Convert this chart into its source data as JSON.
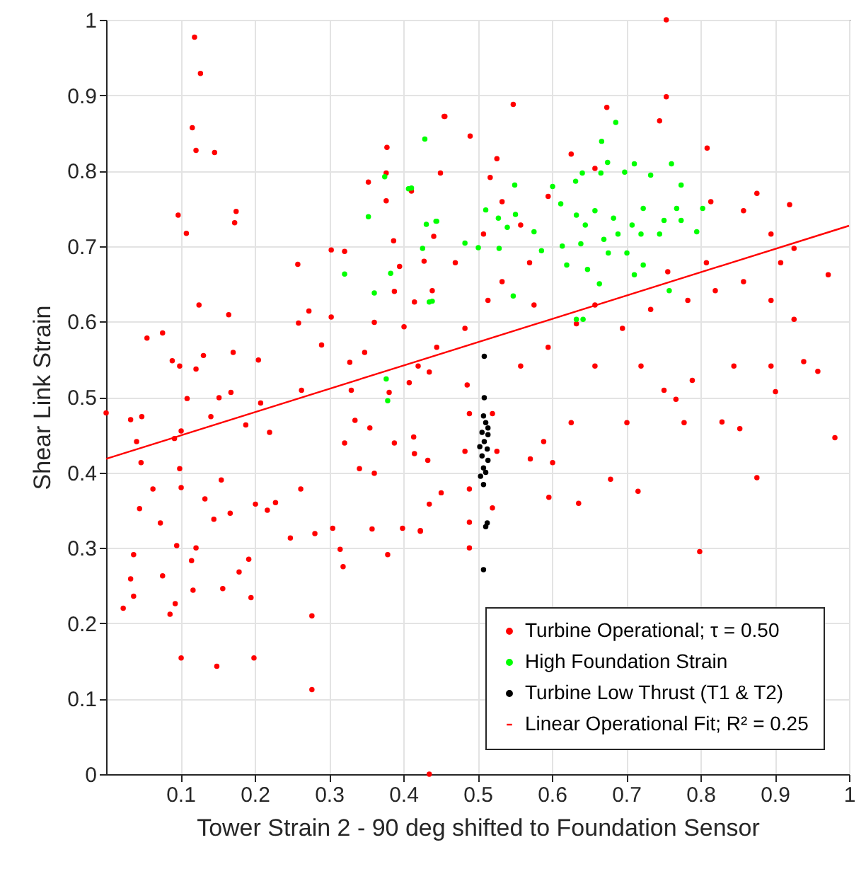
{
  "chart_data": {
    "type": "scatter",
    "xlabel": "Tower Strain 2 - 90 deg shifted to Foundation Sensor",
    "ylabel": "Shear Link Strain",
    "xlim": [
      0,
      1
    ],
    "ylim": [
      0,
      1
    ],
    "xticks": [
      0.1,
      0.2,
      0.3,
      0.4,
      0.5,
      0.6,
      0.7,
      0.8,
      0.9,
      1
    ],
    "yticks": [
      0,
      0.1,
      0.2,
      0.3,
      0.4,
      0.5,
      0.6,
      0.7,
      0.8,
      0.9,
      1
    ],
    "grid": true,
    "legend": "bottom right",
    "marker": "circle",
    "series": [
      {
        "name": "Turbine Operational; τ = 0.50",
        "color": "#ff0000",
        "x": [
          0.119,
          0.127,
          0.116,
          0.121,
          0.146,
          0.097,
          0.108,
          0.175,
          0.173,
          0.125,
          0.165,
          0.055,
          0.076,
          0,
          0.033,
          0.048,
          0.041,
          0.047,
          0.045,
          0.037,
          0.033,
          0.037,
          0.023,
          0.063,
          0.073,
          0.076,
          0.086,
          0.093,
          0.101,
          0.149,
          0.199,
          0.095,
          0.115,
          0.121,
          0.117,
          0.101,
          0.099,
          0.092,
          0.101,
          0.109,
          0.089,
          0.099,
          0.131,
          0.121,
          0.141,
          0.152,
          0.155,
          0.133,
          0.145,
          0.167,
          0.157,
          0.179,
          0.192,
          0.195,
          0.171,
          0.168,
          0.188,
          0.208,
          0.205,
          0.201,
          0.217,
          0.228,
          0.22,
          0.248,
          0.258,
          0.259,
          0.263,
          0.262,
          0.273,
          0.277,
          0.277,
          0.281,
          0.29,
          0.303,
          0.303,
          0.305,
          0.315,
          0.319,
          0.321,
          0.33,
          0.335,
          0.341,
          0.361,
          0.353,
          0.378,
          0.377,
          0.377,
          0.379,
          0.358,
          0.387,
          0.395,
          0.399,
          0.411,
          0.423,
          0.45,
          0.455,
          0.328,
          0.348,
          0.361,
          0.388,
          0.401,
          0.415,
          0.428,
          0.441,
          0.381,
          0.408,
          0.435,
          0.355,
          0.388,
          0.415,
          0.435,
          0.321,
          0.435,
          0.548,
          0.456,
          0.49,
          0.674,
          0.754,
          0.754,
          0.745,
          0.809,
          0.876,
          0.92,
          0.972,
          0.981,
          0.958,
          0.901,
          0.876,
          0.853,
          0.829,
          0.799,
          0.778,
          0.767,
          0.716,
          0.679,
          0.636,
          0.596,
          0.601,
          0.571,
          0.589,
          0.626,
          0.658,
          0.701,
          0.72,
          0.751,
          0.789,
          0.845,
          0.895,
          0.939,
          0.926,
          0.895,
          0.858,
          0.908,
          0.926,
          0.895,
          0.858,
          0.814,
          0.808,
          0.82,
          0.783,
          0.756,
          0.733,
          0.695,
          0.658,
          0.633,
          0.595,
          0.558,
          0.576,
          0.57,
          0.533,
          0.514,
          0.483,
          0.445,
          0.42,
          0.439,
          0.47,
          0.508,
          0.533,
          0.558,
          0.595,
          0.626,
          0.658,
          0.526,
          0.517,
          0.486,
          0.489,
          0.483,
          0.489,
          0.489,
          0.489,
          0.52,
          0.526,
          0.52,
          0.433,
          0.423,
          0.451,
          0.414
        ],
        "values": [
          0.977,
          0.929,
          0.857,
          0.827,
          0.824,
          0.741,
          0.717,
          0.746,
          0.731,
          0.622,
          0.609,
          0.578,
          0.585,
          0.479,
          0.47,
          0.474,
          0.441,
          0.413,
          0.352,
          0.291,
          0.259,
          0.236,
          0.22,
          0.378,
          0.333,
          0.263,
          0.212,
          0.226,
          0.154,
          0.143,
          0.154,
          0.303,
          0.283,
          0.3,
          0.244,
          0.38,
          0.405,
          0.445,
          0.455,
          0.498,
          0.548,
          0.541,
          0.555,
          0.537,
          0.474,
          0.499,
          0.39,
          0.365,
          0.338,
          0.346,
          0.246,
          0.268,
          0.285,
          0.234,
          0.559,
          0.506,
          0.463,
          0.492,
          0.549,
          0.358,
          0.35,
          0.36,
          0.453,
          0.313,
          0.676,
          0.598,
          0.509,
          0.378,
          0.614,
          0.21,
          0.112,
          0.319,
          0.569,
          0.695,
          0.606,
          0.326,
          0.298,
          0.275,
          0.693,
          0.509,
          0.469,
          0.405,
          0.399,
          0.785,
          0.831,
          0.797,
          0.76,
          0.291,
          0.325,
          0.707,
          0.673,
          0.326,
          0.773,
          0.322,
          0.797,
          0.872,
          0.546,
          0.559,
          0.599,
          0.64,
          0.593,
          0.626,
          0.68,
          0.713,
          0.506,
          0.519,
          0.533,
          0.459,
          0.439,
          0.425,
          0.358,
          0.439,
          0,
          0.888,
          0.872,
          0.846,
          0.884,
          1,
          0.898,
          0.866,
          0.83,
          0.77,
          0.755,
          0.662,
          0.446,
          0.534,
          0.507,
          0.393,
          0.458,
          0.467,
          0.295,
          0.466,
          0.497,
          0.375,
          0.391,
          0.359,
          0.367,
          0.413,
          0.418,
          0.441,
          0.466,
          0.541,
          0.466,
          0.541,
          0.509,
          0.522,
          0.541,
          0.541,
          0.547,
          0.603,
          0.628,
          0.653,
          0.678,
          0.697,
          0.716,
          0.747,
          0.759,
          0.678,
          0.641,
          0.628,
          0.666,
          0.616,
          0.591,
          0.622,
          0.597,
          0.566,
          0.541,
          0.622,
          0.678,
          0.653,
          0.628,
          0.591,
          0.566,
          0.541,
          0.641,
          0.678,
          0.716,
          0.759,
          0.728,
          0.766,
          0.822,
          0.803,
          0.816,
          0.791,
          0.516,
          0.478,
          0.428,
          0.378,
          0.334,
          0.3,
          0.353,
          0.428,
          0.478,
          0.416,
          0.323,
          0.373,
          0.447
        ]
      },
      {
        "name": "High Foundation Strain",
        "color": "#00ff00",
        "x": [
          0.429,
          0.686,
          0.667,
          0.411,
          0.55,
          0.511,
          0.528,
          0.551,
          0.431,
          0.445,
          0.483,
          0.501,
          0.529,
          0.54,
          0.576,
          0.586,
          0.601,
          0.612,
          0.632,
          0.641,
          0.666,
          0.675,
          0.698,
          0.711,
          0.733,
          0.761,
          0.774,
          0.803,
          0.795,
          0.774,
          0.768,
          0.751,
          0.723,
          0.708,
          0.683,
          0.658,
          0.633,
          0.645,
          0.67,
          0.689,
          0.72,
          0.745,
          0.701,
          0.676,
          0.639,
          0.614,
          0.62,
          0.648,
          0.664,
          0.711,
          0.723,
          0.758,
          0.633,
          0.642,
          0.548,
          0.439,
          0.375,
          0.407,
          0.353,
          0.321,
          0.383,
          0.361,
          0.435,
          0.426,
          0.444,
          0.377,
          0.379
        ],
        "values": [
          0.842,
          0.864,
          0.839,
          0.777,
          0.781,
          0.748,
          0.737,
          0.742,
          0.729,
          0.733,
          0.704,
          0.698,
          0.697,
          0.725,
          0.719,
          0.694,
          0.779,
          0.756,
          0.786,
          0.797,
          0.797,
          0.811,
          0.798,
          0.809,
          0.794,
          0.809,
          0.781,
          0.75,
          0.719,
          0.734,
          0.75,
          0.734,
          0.75,
          0.728,
          0.737,
          0.747,
          0.741,
          0.728,
          0.709,
          0.716,
          0.716,
          0.716,
          0.691,
          0.691,
          0.703,
          0.7,
          0.675,
          0.669,
          0.65,
          0.662,
          0.675,
          0.641,
          0.603,
          0.603,
          0.634,
          0.627,
          0.792,
          0.776,
          0.739,
          0.663,
          0.664,
          0.638,
          0.626,
          0.697,
          0.733,
          0.524,
          0.495
        ]
      },
      {
        "name": "Turbine Low Thrust (T1 & T2)",
        "color": "#000000",
        "x": [
          0.509,
          0.509,
          0.508,
          0.511,
          0.506,
          0.514,
          0.509,
          0.513,
          0.506,
          0.514,
          0.508,
          0.511,
          0.504,
          0.508,
          0.514,
          0.503,
          0.511,
          0.513,
          0.508
        ],
        "values": [
          0.554,
          0.499,
          0.475,
          0.466,
          0.453,
          0.45,
          0.441,
          0.431,
          0.422,
          0.416,
          0.406,
          0.4,
          0.395,
          0.384,
          0.459,
          0.434,
          0.328,
          0.333,
          0.271
        ]
      },
      {
        "name": "Linear Operational Fit; R² = 0.25",
        "type": "line",
        "color": "#ff0000",
        "line_style": "solid",
        "marker": "none",
        "x": [
          0,
          1
        ],
        "values": [
          0.418,
          0.727
        ]
      }
    ]
  }
}
